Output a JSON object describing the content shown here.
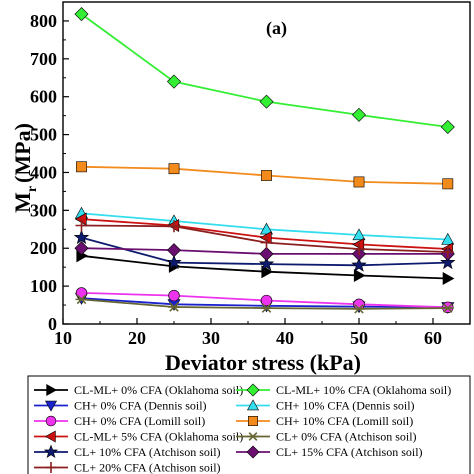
{
  "chart_data": {
    "type": "line",
    "panel_label": "(a)",
    "xlabel": "Deviator stress (kPa)",
    "ylabel_main": "M",
    "ylabel_sub": "r",
    "ylabel_unit": "(MPa)",
    "xlim": [
      10,
      65
    ],
    "ylim": [
      0,
      850
    ],
    "xticks": [
      10,
      20,
      30,
      40,
      50,
      60
    ],
    "yticks": [
      0,
      100,
      200,
      300,
      400,
      500,
      600,
      700,
      800
    ],
    "grid": false,
    "legend_position": "bottom",
    "series": [
      {
        "name": "CL-ML+ 0% CFA (Oklahoma soil)",
        "color": "#000000",
        "marker": "tri-right",
        "x": [
          12.5,
          25,
          37.5,
          50,
          62
        ],
        "y": [
          180,
          152,
          138,
          128,
          120
        ]
      },
      {
        "name": "CL-ML+ 10% CFA (Oklahoma soil)",
        "color": "#33ee33",
        "marker": "diamond",
        "x": [
          12.5,
          25,
          37.5,
          50,
          62
        ],
        "y": [
          818,
          640,
          587,
          552,
          520
        ]
      },
      {
        "name": "CH+ 0% CFA (Dennis soil)",
        "color": "#1a22cc",
        "marker": "tri-down",
        "x": [
          12.5,
          25,
          37.5,
          50,
          62
        ],
        "y": [
          68,
          52,
          48,
          46,
          44
        ]
      },
      {
        "name": "CH+ 10% CFA (Dennis soil)",
        "color": "#33ddee",
        "marker": "tri-up",
        "x": [
          12.5,
          25,
          37.5,
          50,
          62
        ],
        "y": [
          292,
          272,
          250,
          235,
          223
        ]
      },
      {
        "name": "CH+ 0% CFA (Lomill soil)",
        "color": "#ee33ee",
        "marker": "circle",
        "x": [
          12.5,
          25,
          37.5,
          50,
          62
        ],
        "y": [
          82,
          75,
          62,
          52,
          44
        ]
      },
      {
        "name": "CH+ 10% CFA (Lomill soil)",
        "color": "#f28a1c",
        "marker": "square",
        "x": [
          12.5,
          25,
          37.5,
          50,
          62
        ],
        "y": [
          415,
          410,
          392,
          375,
          370
        ]
      },
      {
        "name": "CL-ML+ 5% CFA (Oklahoma soil)",
        "color": "#cc1111",
        "marker": "tri-left",
        "x": [
          12.5,
          25,
          37.5,
          50,
          62
        ],
        "y": [
          277,
          260,
          228,
          210,
          198
        ]
      },
      {
        "name": "CL+ 0% CFA (Atchison soil)",
        "color": "#666633",
        "marker": "star",
        "x": [
          12.5,
          25,
          37.5,
          50,
          62
        ],
        "y": [
          65,
          45,
          42,
          40,
          42
        ]
      },
      {
        "name": "CL+ 10% CFA (Atchison soil)",
        "color": "#0e1a6e",
        "marker": "star5",
        "x": [
          12.5,
          25,
          37.5,
          50,
          62
        ],
        "y": [
          228,
          162,
          158,
          155,
          162
        ]
      },
      {
        "name": "CL+ 15% CFA (Atchison soil)",
        "color": "#6a0f6f",
        "marker": "diamond",
        "x": [
          12.5,
          25,
          37.5,
          50,
          62
        ],
        "y": [
          200,
          195,
          185,
          185,
          185
        ]
      },
      {
        "name": "CL+ 20% CFA (Atchison soil)",
        "color": "#8b1e1e",
        "marker": "plus",
        "x": [
          12.5,
          25,
          37.5,
          50,
          62
        ],
        "y": [
          260,
          258,
          215,
          198,
          190
        ]
      }
    ]
  }
}
